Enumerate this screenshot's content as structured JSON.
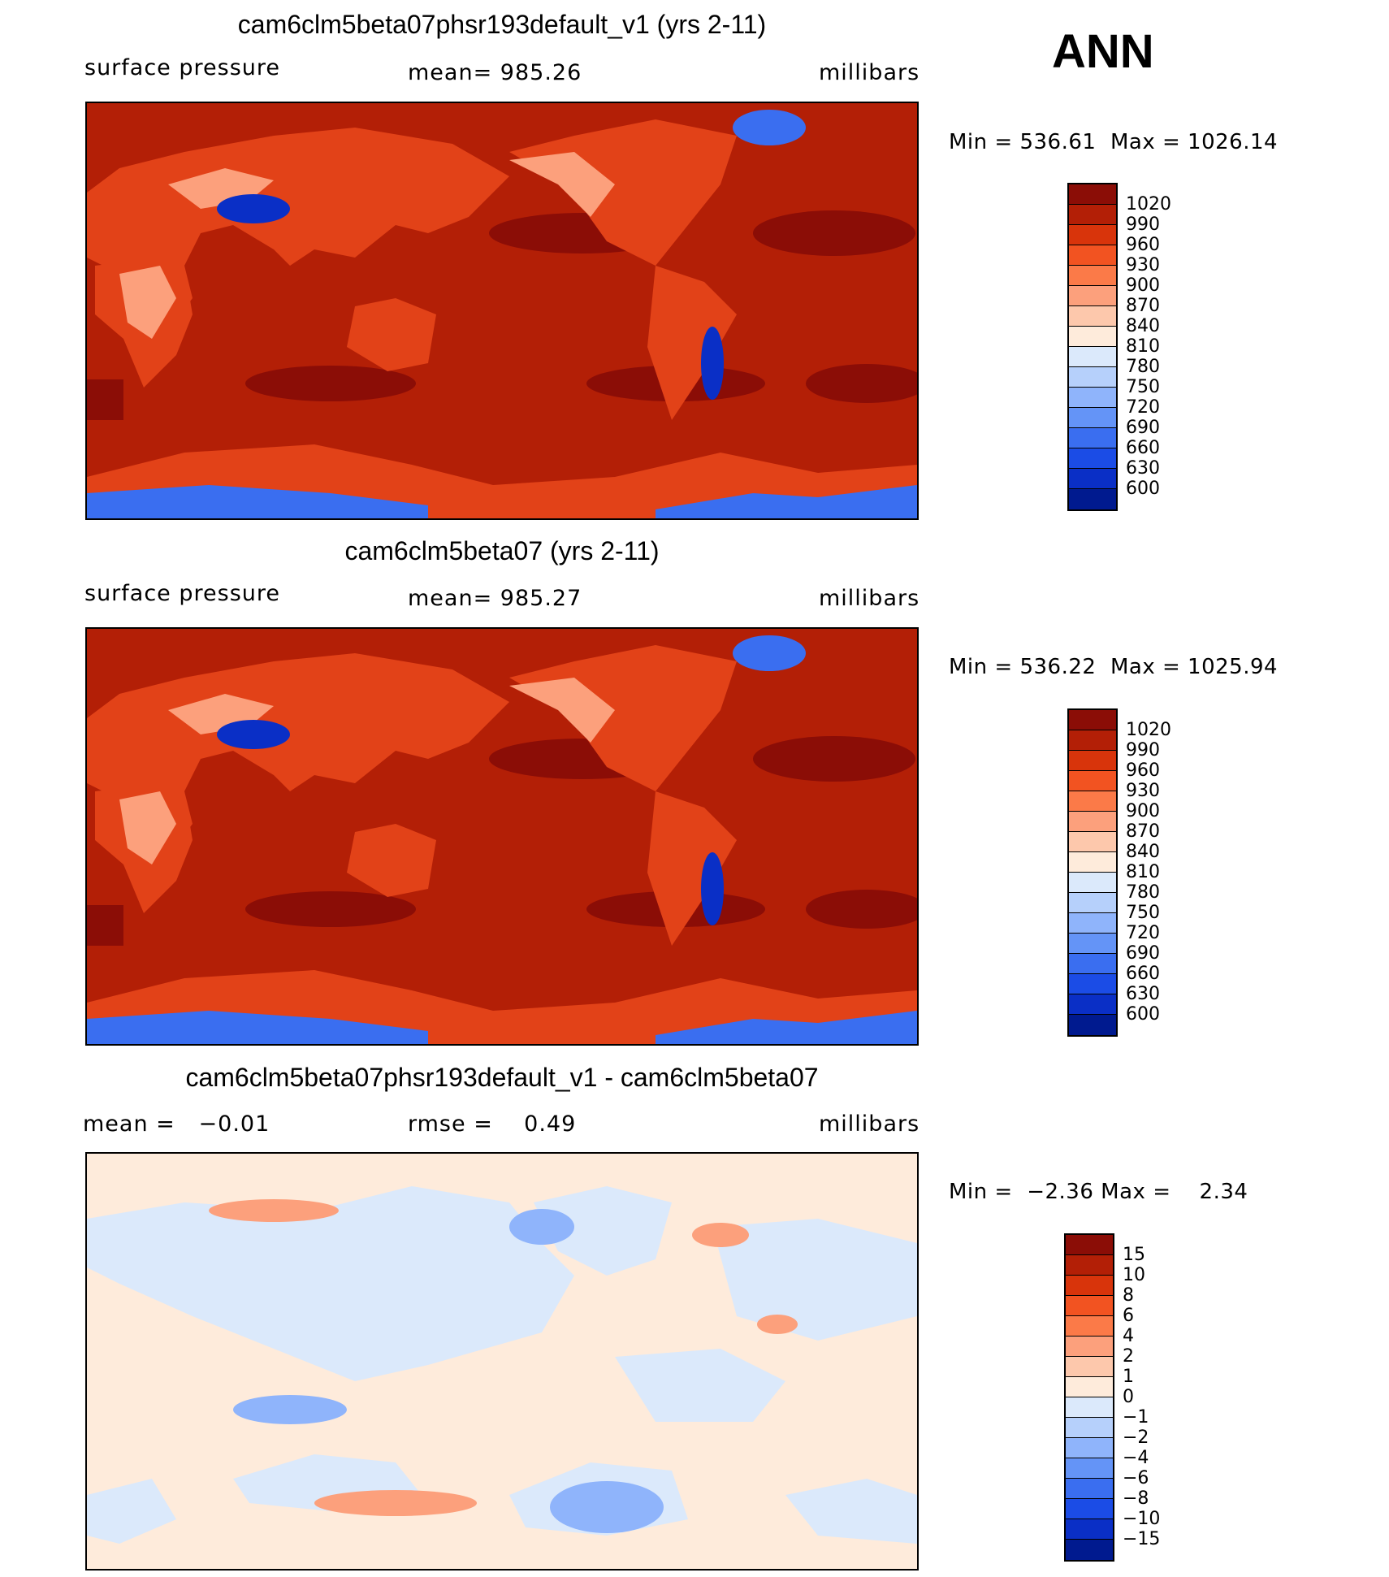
{
  "season": "ANN",
  "chart_data": [
    {
      "type": "heatmap",
      "title": "cam6clm5beta07phsr193default_v1 (yrs 2-11)",
      "variable": "surface pressure",
      "stat_label": "mean=",
      "stat_value": "985.26",
      "units": "millibars",
      "min_label": "Min =",
      "min_value": "536.61",
      "max_label": "Max =",
      "max_value": "1026.14",
      "legend_levels": [
        "1020",
        "990",
        "960",
        "930",
        "900",
        "870",
        "840",
        "810",
        "780",
        "750",
        "720",
        "690",
        "660",
        "630",
        "600"
      ],
      "legend_colors": [
        "#8b0d06",
        "#b31f06",
        "#d8340b",
        "#f25321",
        "#fb7a48",
        "#fca07c",
        "#fdc8ac",
        "#feebdb",
        "#dbe9fb",
        "#b6d0fb",
        "#8fb4fb",
        "#6494f7",
        "#3a6ef0",
        "#1b4ce6",
        "#0a2fc6",
        "#001a8f"
      ],
      "colors": {
        "ocean": "#b31f06",
        "land": "#e24218",
        "highland": "#fca07c",
        "plateau": "#0a2fc6",
        "ice": "#3a6ef0",
        "high": "#8b0d06"
      }
    },
    {
      "type": "heatmap",
      "title": "cam6clm5beta07 (yrs 2-11)",
      "variable": "surface pressure",
      "stat_label": "mean=",
      "stat_value": "985.27",
      "units": "millibars",
      "min_label": "Min =",
      "min_value": "536.22",
      "max_label": "Max =",
      "max_value": "1025.94",
      "legend_levels": [
        "1020",
        "990",
        "960",
        "930",
        "900",
        "870",
        "840",
        "810",
        "780",
        "750",
        "720",
        "690",
        "660",
        "630",
        "600"
      ],
      "legend_colors": [
        "#8b0d06",
        "#b31f06",
        "#d8340b",
        "#f25321",
        "#fb7a48",
        "#fca07c",
        "#fdc8ac",
        "#feebdb",
        "#dbe9fb",
        "#b6d0fb",
        "#8fb4fb",
        "#6494f7",
        "#3a6ef0",
        "#1b4ce6",
        "#0a2fc6",
        "#001a8f"
      ],
      "colors": {
        "ocean": "#b31f06",
        "land": "#e24218",
        "highland": "#fca07c",
        "plateau": "#0a2fc6",
        "ice": "#3a6ef0",
        "high": "#8b0d06"
      }
    },
    {
      "type": "heatmap",
      "title": "cam6clm5beta07phsr193default_v1 - cam6clm5beta07",
      "stat_label": "mean =",
      "stat_value": "−0.01",
      "stat2_label": "rmse =",
      "stat2_value": "0.49",
      "units": "millibars",
      "min_label": "Min =",
      "min_value": "−2.36",
      "max_label": "Max =",
      "max_value": "2.34",
      "legend_levels": [
        "15",
        "10",
        "8",
        "6",
        "4",
        "2",
        "1",
        "0",
        "−1",
        "−2",
        "−4",
        "−6",
        "−8",
        "−10",
        "−15"
      ],
      "legend_colors": [
        "#8b0d06",
        "#b31f06",
        "#d8340b",
        "#f25321",
        "#fb7a48",
        "#fca07c",
        "#fdc8ac",
        "#feebdb",
        "#dbe9fb",
        "#b6d0fb",
        "#8fb4fb",
        "#6494f7",
        "#3a6ef0",
        "#1b4ce6",
        "#0a2fc6",
        "#001a8f"
      ],
      "colors": {
        "ocean": "#feebdb",
        "land": "#dbe9fb",
        "positive": "#fca07c",
        "negative": "#8fb4fb"
      }
    }
  ]
}
